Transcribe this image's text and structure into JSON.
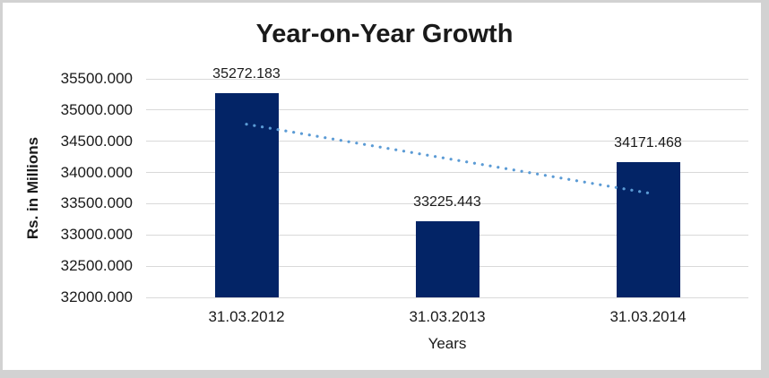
{
  "frame": {
    "border_color": "#d2d2d2",
    "background": "#ffffff"
  },
  "chart_data": {
    "type": "bar",
    "title": "Year-on-Year Growth",
    "xlabel": "Years",
    "ylabel": "Rs. in Millions",
    "categories": [
      "31.03.2012",
      "31.03.2013",
      "31.03.2014"
    ],
    "values": [
      35272.183,
      33225.443,
      34171.468
    ],
    "value_labels": [
      "35272.183",
      "33225.443",
      "34171.468"
    ],
    "ylim": [
      32000,
      35500
    ],
    "ytick_values": [
      35500,
      35000,
      34500,
      34000,
      33500,
      33000,
      32500,
      32000
    ],
    "ytick_labels": [
      "35500.000",
      "35000.000",
      "34500.000",
      "34000.000",
      "33500.000",
      "33000.000",
      "32500.000",
      "32000.000"
    ],
    "grid": true,
    "legend": "none",
    "bar_color": "#032466",
    "gridline_color": "#D9D9D9",
    "text_color": "#1a1a1a",
    "trendline": {
      "style": "dotted",
      "color": "#5B9BD5",
      "start_value": 34773.4,
      "end_value": 33672.7
    }
  }
}
